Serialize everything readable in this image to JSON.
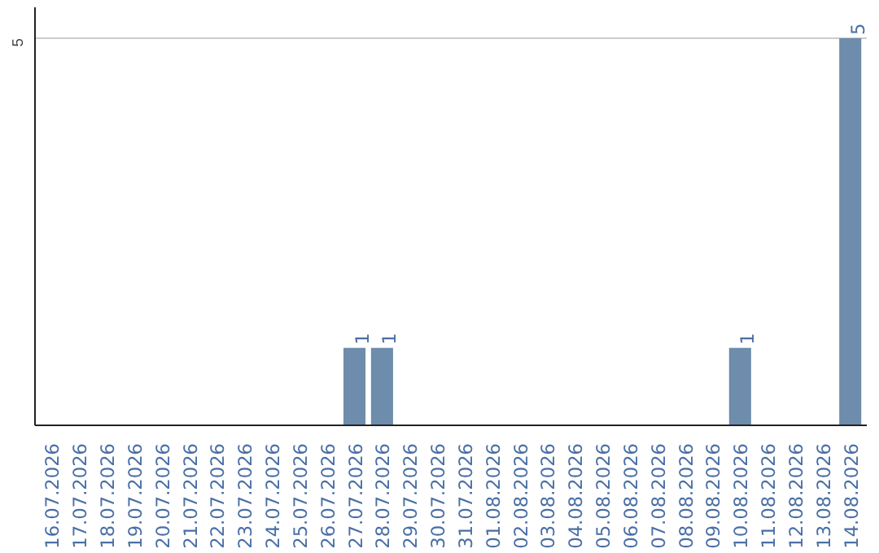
{
  "chart_data": {
    "type": "bar",
    "categories": [
      "16.07.2026",
      "17.07.2026",
      "18.07.2026",
      "19.07.2026",
      "20.07.2026",
      "21.07.2026",
      "22.07.2026",
      "23.07.2026",
      "24.07.2026",
      "25.07.2026",
      "26.07.2026",
      "27.07.2026",
      "28.07.2026",
      "29.07.2026",
      "30.07.2026",
      "31.07.2026",
      "01.08.2026",
      "02.08.2026",
      "03.08.2026",
      "04.08.2026",
      "05.08.2026",
      "06.08.2026",
      "07.08.2026",
      "08.08.2026",
      "09.08.2026",
      "10.08.2026",
      "11.08.2026",
      "12.08.2026",
      "13.08.2026",
      "14.08.2026"
    ],
    "values": [
      0,
      0,
      0,
      0,
      0,
      0,
      0,
      0,
      0,
      0,
      0,
      1,
      1,
      0,
      0,
      0,
      0,
      0,
      0,
      0,
      0,
      0,
      0,
      0,
      0,
      1,
      0,
      0,
      0,
      5
    ],
    "value_labels": [
      null,
      null,
      null,
      null,
      null,
      null,
      null,
      null,
      null,
      null,
      null,
      "1",
      "1",
      null,
      null,
      null,
      null,
      null,
      null,
      null,
      null,
      null,
      null,
      null,
      null,
      "1",
      null,
      null,
      null,
      "5"
    ],
    "color": "#6e8cab",
    "ylim": [
      0,
      5.4
    ],
    "yticks": [
      5
    ],
    "grid": "y"
  }
}
